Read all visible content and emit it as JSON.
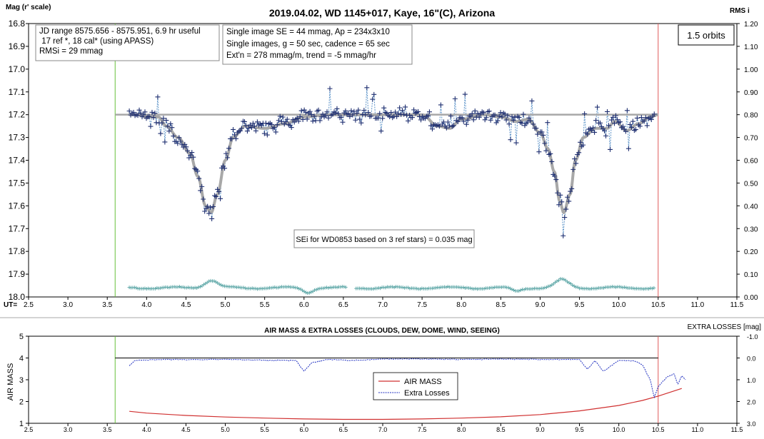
{
  "chart_data": [
    {
      "type": "scatter",
      "title": "2019.04.02, WD 1145+017, Kaye, 16\"(C), Arizona",
      "ylabel_left": "Mag (r' scale)",
      "ylabel_right": "RMS i",
      "xlabel": "UT=",
      "xlim": [
        2.5,
        11.5
      ],
      "ylim": [
        16.8,
        18.0
      ],
      "ylim_right": [
        0.0,
        1.2
      ],
      "x_ticks": [
        "2.5",
        "3.0",
        "3.5",
        "4.0",
        "4.5",
        "5.0",
        "5.5",
        "6.0",
        "6.5",
        "7.0",
        "7.5",
        "8.0",
        "8.5",
        "9.0",
        "9.5",
        "10.0",
        "10.5",
        "11.0",
        "11.5"
      ],
      "y_ticks": [
        "16.8",
        "16.9",
        "17.0",
        "17.1",
        "17.2",
        "17.3",
        "17.4",
        "17.5",
        "17.6",
        "17.7",
        "17.8",
        "17.9",
        "18.0"
      ],
      "y_ticks_right": [
        "1.20",
        "1.10",
        "1.00",
        "0.90",
        "0.80",
        "0.70",
        "0.60",
        "0.50",
        "0.40",
        "0.30",
        "0.20",
        "0.10",
        "0.00"
      ],
      "info_box_left": [
        "JD range 8575.656 - 8575.951, 6.9 hr useful",
        " 17 ref *, 18 cal* (using APASS)",
        "RMSi = 29 mmag"
      ],
      "info_box_mid": [
        "Single image SE = 44 mmag, Ap = 234x3x10",
        "Single images, g = 50 sec, cadence = 65 sec",
        "Ext'n = 278 mmag/m, trend = -5 mmag/hr"
      ],
      "orbits_label": "1.5 orbits",
      "annotation": "SEi for WD0853 based on 3 ref stars) = 0.035 mag",
      "baseline_mag": 17.2,
      "start_line_ut": 3.6,
      "end_line_ut": 10.5,
      "data_range_ut": [
        3.78,
        10.45
      ],
      "dips": [
        {
          "ut": 4.8,
          "depth_mag": 0.42,
          "width": 0.09
        },
        {
          "ut": 9.28,
          "depth_mag": 0.42,
          "width": 0.09
        }
      ],
      "model_points": [
        [
          3.6,
          17.2
        ],
        [
          3.9,
          17.2
        ],
        [
          4.0,
          17.21
        ],
        [
          4.15,
          17.21
        ],
        [
          4.25,
          17.25
        ],
        [
          4.4,
          17.3
        ],
        [
          4.55,
          17.37
        ],
        [
          4.65,
          17.47
        ],
        [
          4.75,
          17.6
        ],
        [
          4.82,
          17.63
        ],
        [
          4.9,
          17.55
        ],
        [
          5.0,
          17.4
        ],
        [
          5.1,
          17.3
        ],
        [
          5.25,
          17.25
        ],
        [
          5.5,
          17.26
        ],
        [
          5.75,
          17.24
        ],
        [
          6.0,
          17.21
        ],
        [
          6.3,
          17.2
        ],
        [
          7.0,
          17.2
        ],
        [
          7.5,
          17.2
        ],
        [
          7.7,
          17.25
        ],
        [
          7.85,
          17.26
        ],
        [
          8.0,
          17.22
        ],
        [
          8.3,
          17.2
        ],
        [
          8.5,
          17.21
        ],
        [
          8.7,
          17.23
        ],
        [
          8.85,
          17.22
        ],
        [
          9.0,
          17.28
        ],
        [
          9.1,
          17.35
        ],
        [
          9.18,
          17.45
        ],
        [
          9.25,
          17.58
        ],
        [
          9.3,
          17.63
        ],
        [
          9.38,
          17.55
        ],
        [
          9.45,
          17.4
        ],
        [
          9.55,
          17.3
        ],
        [
          9.7,
          17.26
        ],
        [
          9.85,
          17.26
        ],
        [
          9.95,
          17.23
        ],
        [
          10.1,
          17.27
        ],
        [
          10.25,
          17.24
        ],
        [
          10.4,
          17.21
        ],
        [
          10.5,
          17.2
        ]
      ],
      "rms_level": 0.04,
      "rms_bumps": [
        {
          "ut": 4.82,
          "h": 0.033
        },
        {
          "ut": 9.28,
          "h": 0.035
        }
      ],
      "rms_dips": [
        {
          "ut": 6.05,
          "d": 0.02
        },
        {
          "ut": 8.7,
          "d": 0.015
        }
      ],
      "rms_gap_ut": [
        6.55,
        6.65
      ],
      "colors": {
        "points": "#1f2f70",
        "connect": "#5a92c8",
        "model": "#a8a8a8",
        "rms": "#5fa8a8",
        "green_line": "#66c03a",
        "red_line": "#e05a5a"
      }
    },
    {
      "type": "line",
      "title": "AIR MASS & EXTRA LOSSES (CLOUDS, DEW, DOME, WIND, SEEING)",
      "ylabel_left": "AIR MASS",
      "ylabel_right": "EXTRA LOSSES [mag]",
      "xlim": [
        2.5,
        11.5
      ],
      "ylim": [
        1,
        5
      ],
      "ylim_right": [
        -1.0,
        3.0
      ],
      "x_ticks": [
        "2.5",
        "3.0",
        "3.5",
        "4.0",
        "4.5",
        "5.0",
        "5.5",
        "6.0",
        "6.5",
        "7.0",
        "7.5",
        "8.0",
        "8.5",
        "9.0",
        "9.5",
        "10.0",
        "10.5",
        "11.0",
        "11.5"
      ],
      "y_ticks": [
        "5",
        "4",
        "3",
        "2",
        "1"
      ],
      "y_ticks_right": [
        "-1.0",
        "0.0",
        "1.0",
        "2.0",
        "3.0"
      ],
      "zero_line_range_ut": [
        3.6,
        10.5
      ],
      "series": [
        {
          "name": "AIR MASS",
          "x": [
            3.78,
            4.0,
            4.5,
            5.0,
            5.5,
            6.0,
            6.5,
            7.0,
            7.5,
            8.0,
            8.5,
            9.0,
            9.5,
            10.0,
            10.3,
            10.5,
            10.8
          ],
          "y": [
            1.55,
            1.47,
            1.36,
            1.29,
            1.24,
            1.2,
            1.18,
            1.18,
            1.2,
            1.24,
            1.3,
            1.4,
            1.57,
            1.82,
            2.05,
            2.25,
            2.6
          ]
        },
        {
          "name": "Extra Losses",
          "x": [
            3.78,
            3.85,
            4.2,
            4.6,
            5.0,
            5.5,
            5.9,
            6.0,
            6.1,
            6.3,
            6.6,
            7.0,
            7.5,
            8.0,
            8.5,
            9.0,
            9.5,
            9.6,
            9.7,
            9.8,
            10.0,
            10.2,
            10.3,
            10.4,
            10.45,
            10.5,
            10.6,
            10.7,
            10.75,
            10.8,
            10.85
          ],
          "y": [
            0.35,
            0.1,
            0.05,
            0.06,
            0.05,
            0.08,
            0.1,
            0.6,
            0.2,
            0.05,
            0.1,
            0.04,
            0.03,
            0.05,
            0.04,
            0.05,
            0.06,
            0.5,
            0.1,
            0.6,
            0.1,
            0.12,
            0.3,
            1.0,
            1.8,
            1.3,
            0.9,
            0.7,
            1.2,
            0.8,
            1.0
          ]
        }
      ],
      "legend": [
        "AIR MASS",
        "Extra Losses"
      ],
      "legend_position": "center",
      "colors": {
        "airmass": "#d03030",
        "losses": "#2030c0",
        "zero_line": "#000000",
        "green_line": "#66c03a",
        "red_line": "#e05a5a"
      }
    }
  ]
}
